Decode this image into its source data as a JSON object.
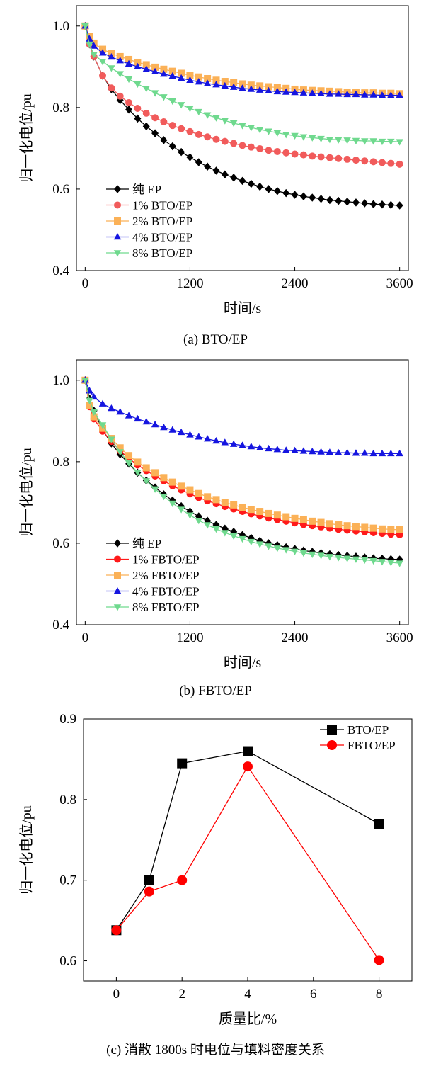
{
  "chart_data": [
    {
      "type": "line",
      "caption": "(a) BTO/EP",
      "xlabel": "时间/s",
      "ylabel": "归一化电位/pu",
      "xlim": [
        -100,
        3700
      ],
      "ylim": [
        0.4,
        1.05
      ],
      "xticks": [
        0,
        1200,
        2400,
        3600
      ],
      "yticks": [
        0.4,
        0.6,
        0.8,
        1.0
      ],
      "ytick_labels": [
        "0.4",
        "0.6",
        "0.8",
        "1.0"
      ],
      "legend_position": "lower-left",
      "series": [
        {
          "name": "纯 EP",
          "color": "#000000",
          "marker": "diamond",
          "x": [
            0,
            50,
            100,
            200,
            300,
            400,
            500,
            600,
            700,
            800,
            900,
            1000,
            1100,
            1200,
            1300,
            1400,
            1500,
            1600,
            1700,
            1800,
            1900,
            2000,
            2100,
            2200,
            2300,
            2400,
            2500,
            2600,
            2700,
            2800,
            2900,
            3000,
            3100,
            3200,
            3300,
            3400,
            3500,
            3600
          ],
          "y": [
            1.0,
            0.955,
            0.925,
            0.878,
            0.845,
            0.818,
            0.795,
            0.773,
            0.754,
            0.737,
            0.72,
            0.705,
            0.691,
            0.678,
            0.666,
            0.655,
            0.645,
            0.636,
            0.628,
            0.62,
            0.613,
            0.606,
            0.6,
            0.595,
            0.59,
            0.586,
            0.582,
            0.579,
            0.576,
            0.573,
            0.571,
            0.569,
            0.567,
            0.565,
            0.563,
            0.562,
            0.561,
            0.56
          ]
        },
        {
          "name": "1% BTO/EP",
          "color": "#f15b5b",
          "marker": "circle",
          "x": [
            0,
            50,
            100,
            200,
            300,
            400,
            500,
            600,
            700,
            800,
            900,
            1000,
            1100,
            1200,
            1300,
            1400,
            1500,
            1600,
            1700,
            1800,
            1900,
            2000,
            2100,
            2200,
            2300,
            2400,
            2500,
            2600,
            2700,
            2800,
            2900,
            3000,
            3100,
            3200,
            3300,
            3400,
            3500,
            3600
          ],
          "y": [
            1.0,
            0.955,
            0.925,
            0.878,
            0.848,
            0.828,
            0.812,
            0.798,
            0.786,
            0.775,
            0.765,
            0.756,
            0.748,
            0.741,
            0.734,
            0.728,
            0.722,
            0.717,
            0.712,
            0.707,
            0.703,
            0.699,
            0.695,
            0.692,
            0.689,
            0.686,
            0.684,
            0.681,
            0.679,
            0.677,
            0.675,
            0.673,
            0.671,
            0.669,
            0.667,
            0.665,
            0.663,
            0.661
          ]
        },
        {
          "name": "2% BTO/EP",
          "color": "#fbb157",
          "marker": "square",
          "x": [
            0,
            50,
            100,
            200,
            300,
            400,
            500,
            600,
            700,
            800,
            900,
            1000,
            1100,
            1200,
            1300,
            1400,
            1500,
            1600,
            1700,
            1800,
            1900,
            2000,
            2100,
            2200,
            2300,
            2400,
            2500,
            2600,
            2700,
            2800,
            2900,
            3000,
            3100,
            3200,
            3300,
            3400,
            3500,
            3600
          ],
          "y": [
            1.0,
            0.975,
            0.958,
            0.943,
            0.933,
            0.925,
            0.918,
            0.911,
            0.905,
            0.899,
            0.894,
            0.889,
            0.884,
            0.879,
            0.875,
            0.871,
            0.867,
            0.864,
            0.861,
            0.858,
            0.855,
            0.853,
            0.851,
            0.849,
            0.847,
            0.845,
            0.843,
            0.842,
            0.841,
            0.84,
            0.839,
            0.838,
            0.837,
            0.836,
            0.836,
            0.835,
            0.835,
            0.834
          ]
        },
        {
          "name": "4% BTO/EP",
          "color": "#1515e0",
          "marker": "triangle-up",
          "x": [
            0,
            50,
            100,
            200,
            300,
            400,
            500,
            600,
            700,
            800,
            900,
            1000,
            1100,
            1200,
            1300,
            1400,
            1500,
            1600,
            1700,
            1800,
            1900,
            2000,
            2100,
            2200,
            2300,
            2400,
            2500,
            2600,
            2700,
            2800,
            2900,
            3000,
            3100,
            3200,
            3300,
            3400,
            3500,
            3600
          ],
          "y": [
            1.0,
            0.968,
            0.951,
            0.934,
            0.924,
            0.915,
            0.907,
            0.9,
            0.894,
            0.888,
            0.882,
            0.877,
            0.872,
            0.867,
            0.863,
            0.859,
            0.856,
            0.853,
            0.85,
            0.847,
            0.845,
            0.843,
            0.841,
            0.839,
            0.838,
            0.837,
            0.836,
            0.835,
            0.834,
            0.833,
            0.833,
            0.832,
            0.832,
            0.831,
            0.831,
            0.83,
            0.83,
            0.83
          ]
        },
        {
          "name": "8% BTO/EP",
          "color": "#6fd98e",
          "marker": "triangle-down",
          "x": [
            0,
            50,
            100,
            200,
            300,
            400,
            500,
            600,
            700,
            800,
            900,
            1000,
            1100,
            1200,
            1300,
            1400,
            1500,
            1600,
            1700,
            1800,
            1900,
            2000,
            2100,
            2200,
            2300,
            2400,
            2500,
            2600,
            2700,
            2800,
            2900,
            3000,
            3100,
            3200,
            3300,
            3400,
            3500,
            3600
          ],
          "y": [
            1.0,
            0.955,
            0.93,
            0.913,
            0.897,
            0.883,
            0.87,
            0.858,
            0.847,
            0.836,
            0.826,
            0.816,
            0.807,
            0.798,
            0.79,
            0.782,
            0.775,
            0.768,
            0.762,
            0.756,
            0.751,
            0.746,
            0.742,
            0.738,
            0.734,
            0.731,
            0.728,
            0.726,
            0.724,
            0.722,
            0.721,
            0.72,
            0.719,
            0.718,
            0.718,
            0.717,
            0.717,
            0.716
          ]
        }
      ]
    },
    {
      "type": "line",
      "caption": "(b) FBTO/EP",
      "xlabel": "时间/s",
      "ylabel": "归一化电位/pu",
      "xlim": [
        -100,
        3700
      ],
      "ylim": [
        0.4,
        1.05
      ],
      "xticks": [
        0,
        1200,
        2400,
        3600
      ],
      "yticks": [
        0.4,
        0.6,
        0.8,
        1.0
      ],
      "ytick_labels": [
        "0.4",
        "0.6",
        "0.8",
        "1.0"
      ],
      "legend_position": "lower-left",
      "series": [
        {
          "name": "纯 EP",
          "color": "#000000",
          "marker": "diamond",
          "x": [
            0,
            50,
            100,
            200,
            300,
            400,
            500,
            600,
            700,
            800,
            900,
            1000,
            1100,
            1200,
            1300,
            1400,
            1500,
            1600,
            1700,
            1800,
            1900,
            2000,
            2100,
            2200,
            2300,
            2400,
            2500,
            2600,
            2700,
            2800,
            2900,
            3000,
            3100,
            3200,
            3300,
            3400,
            3500,
            3600
          ],
          "y": [
            1.0,
            0.955,
            0.925,
            0.878,
            0.845,
            0.818,
            0.795,
            0.773,
            0.754,
            0.737,
            0.72,
            0.705,
            0.691,
            0.678,
            0.666,
            0.655,
            0.645,
            0.636,
            0.628,
            0.62,
            0.613,
            0.606,
            0.6,
            0.595,
            0.59,
            0.586,
            0.582,
            0.579,
            0.576,
            0.573,
            0.571,
            0.569,
            0.567,
            0.565,
            0.563,
            0.562,
            0.561,
            0.56
          ]
        },
        {
          "name": "1% FBTO/EP",
          "color": "#ff1a1a",
          "marker": "circle",
          "x": [
            0,
            50,
            100,
            200,
            300,
            400,
            500,
            600,
            700,
            800,
            900,
            1000,
            1100,
            1200,
            1300,
            1400,
            1500,
            1600,
            1700,
            1800,
            1900,
            2000,
            2100,
            2200,
            2300,
            2400,
            2500,
            2600,
            2700,
            2800,
            2900,
            3000,
            3100,
            3200,
            3300,
            3400,
            3500,
            3600
          ],
          "y": [
            1.0,
            0.935,
            0.905,
            0.875,
            0.85,
            0.827,
            0.808,
            0.792,
            0.778,
            0.765,
            0.753,
            0.741,
            0.731,
            0.721,
            0.712,
            0.704,
            0.697,
            0.69,
            0.684,
            0.678,
            0.672,
            0.667,
            0.662,
            0.658,
            0.654,
            0.65,
            0.646,
            0.643,
            0.64,
            0.637,
            0.634,
            0.632,
            0.63,
            0.628,
            0.626,
            0.624,
            0.622,
            0.621
          ]
        },
        {
          "name": "2% FBTO/EP",
          "color": "#fbb157",
          "marker": "square",
          "x": [
            0,
            50,
            100,
            200,
            300,
            400,
            500,
            600,
            700,
            800,
            900,
            1000,
            1100,
            1200,
            1300,
            1400,
            1500,
            1600,
            1700,
            1800,
            1900,
            2000,
            2100,
            2200,
            2300,
            2400,
            2500,
            2600,
            2700,
            2800,
            2900,
            3000,
            3100,
            3200,
            3300,
            3400,
            3500,
            3600
          ],
          "y": [
            1.0,
            0.938,
            0.91,
            0.882,
            0.857,
            0.834,
            0.815,
            0.799,
            0.785,
            0.773,
            0.761,
            0.75,
            0.74,
            0.731,
            0.722,
            0.714,
            0.707,
            0.7,
            0.694,
            0.688,
            0.683,
            0.678,
            0.673,
            0.669,
            0.665,
            0.661,
            0.658,
            0.654,
            0.651,
            0.648,
            0.645,
            0.643,
            0.641,
            0.639,
            0.637,
            0.635,
            0.634,
            0.633
          ]
        },
        {
          "name": "4% FBTO/EP",
          "color": "#1515e0",
          "marker": "triangle-up",
          "x": [
            0,
            50,
            100,
            200,
            300,
            400,
            500,
            600,
            700,
            800,
            900,
            1000,
            1100,
            1200,
            1300,
            1400,
            1500,
            1600,
            1700,
            1800,
            1900,
            2000,
            2100,
            2200,
            2300,
            2400,
            2500,
            2600,
            2700,
            2800,
            2900,
            3000,
            3100,
            3200,
            3300,
            3400,
            3500,
            3600
          ],
          "y": [
            1.0,
            0.974,
            0.959,
            0.942,
            0.931,
            0.922,
            0.913,
            0.905,
            0.898,
            0.891,
            0.884,
            0.878,
            0.872,
            0.866,
            0.861,
            0.856,
            0.851,
            0.847,
            0.843,
            0.84,
            0.837,
            0.834,
            0.832,
            0.83,
            0.828,
            0.827,
            0.826,
            0.825,
            0.824,
            0.823,
            0.822,
            0.822,
            0.821,
            0.821,
            0.82,
            0.82,
            0.82,
            0.82
          ]
        },
        {
          "name": "8% FBTO/EP",
          "color": "#6fd98e",
          "marker": "triangle-down",
          "x": [
            0,
            50,
            100,
            200,
            300,
            400,
            500,
            600,
            700,
            800,
            900,
            1000,
            1100,
            1200,
            1300,
            1400,
            1500,
            1600,
            1700,
            1800,
            1900,
            2000,
            2100,
            2200,
            2300,
            2400,
            2500,
            2600,
            2700,
            2800,
            2900,
            3000,
            3100,
            3200,
            3300,
            3400,
            3500,
            3600
          ],
          "y": [
            1.0,
            0.95,
            0.922,
            0.89,
            0.855,
            0.824,
            0.797,
            0.774,
            0.753,
            0.733,
            0.715,
            0.698,
            0.683,
            0.669,
            0.656,
            0.645,
            0.635,
            0.626,
            0.618,
            0.611,
            0.604,
            0.598,
            0.593,
            0.588,
            0.584,
            0.58,
            0.576,
            0.573,
            0.57,
            0.567,
            0.565,
            0.563,
            0.561,
            0.559,
            0.557,
            0.555,
            0.553,
            0.551
          ]
        }
      ]
    },
    {
      "type": "line",
      "caption": "(c) 消散 1800s 时电位与填料密度关系",
      "xlabel": "质量比/%",
      "ylabel": "归一化电位/pu",
      "xlim": [
        -1,
        9
      ],
      "ylim": [
        0.575,
        0.9
      ],
      "xticks": [
        0,
        2,
        4,
        6,
        8
      ],
      "yticks": [
        0.6,
        0.7,
        0.8,
        0.9
      ],
      "ytick_labels": [
        "0.6",
        "0.7",
        "0.8",
        "0.9"
      ],
      "legend_position": "top-right",
      "series": [
        {
          "name": "BTO/EP",
          "color": "#000000",
          "marker": "square",
          "x": [
            0,
            1,
            2,
            4,
            8
          ],
          "y": [
            0.638,
            0.7,
            0.845,
            0.86,
            0.77
          ]
        },
        {
          "name": "FBTO/EP",
          "color": "#ff0000",
          "marker": "circle",
          "x": [
            0,
            1,
            2,
            4,
            8
          ],
          "y": [
            0.638,
            0.686,
            0.7,
            0.841,
            0.601
          ]
        }
      ]
    }
  ]
}
